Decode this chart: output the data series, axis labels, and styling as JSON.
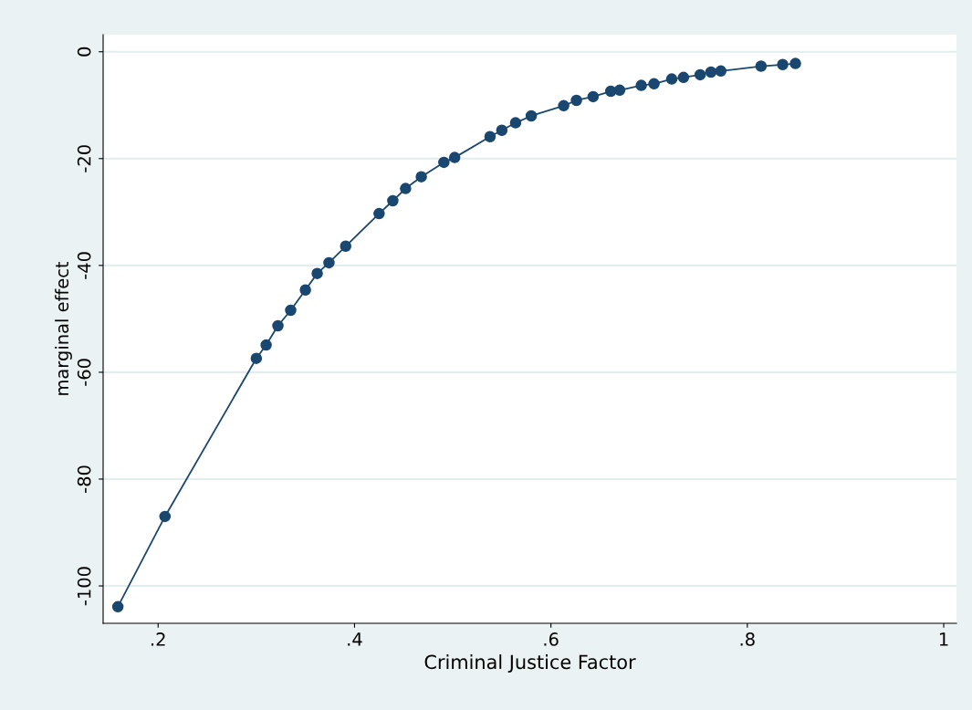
{
  "chart_data": {
    "type": "line",
    "xlabel": "Criminal Justice Factor",
    "ylabel": "marginal effect",
    "x": [
      0.159,
      0.207,
      0.3,
      0.31,
      0.322,
      0.335,
      0.35,
      0.362,
      0.374,
      0.391,
      0.425,
      0.439,
      0.452,
      0.468,
      0.491,
      0.502,
      0.538,
      0.55,
      0.564,
      0.58,
      0.613,
      0.626,
      0.643,
      0.661,
      0.67,
      0.692,
      0.705,
      0.723,
      0.735,
      0.752,
      0.763,
      0.773,
      0.814,
      0.836,
      0.849
    ],
    "series": [
      {
        "color": "#1a476f",
        "values": [
          -103.9,
          -87,
          -57.4,
          -54.9,
          -51.3,
          -48.4,
          -44.6,
          -41.5,
          -39.5,
          -36.4,
          -30.3,
          -27.9,
          -25.6,
          -23.4,
          -20.7,
          -19.8,
          -15.9,
          -14.7,
          -13.3,
          -12.0,
          -10.1,
          -9.1,
          -8.4,
          -7.4,
          -7.2,
          -6.3,
          -6.0,
          -5.1,
          -4.8,
          -4.3,
          -3.8,
          -3.6,
          -2.7,
          -2.4,
          -2.2
        ]
      }
    ],
    "xlim": [
      0.144,
      1.013
    ],
    "ylim": [
      -107,
      3.2
    ],
    "xticks": [
      {
        "value": 0.2,
        "label": ".2"
      },
      {
        "value": 0.4,
        "label": ".4"
      },
      {
        "value": 0.6,
        "label": ".6"
      },
      {
        "value": 0.8,
        "label": ".8"
      },
      1
    ],
    "yticks": [
      -100,
      -80,
      -60,
      -40,
      -20,
      0
    ],
    "grid": "y",
    "marker": "circle",
    "line_style": "solid",
    "legend": false
  }
}
